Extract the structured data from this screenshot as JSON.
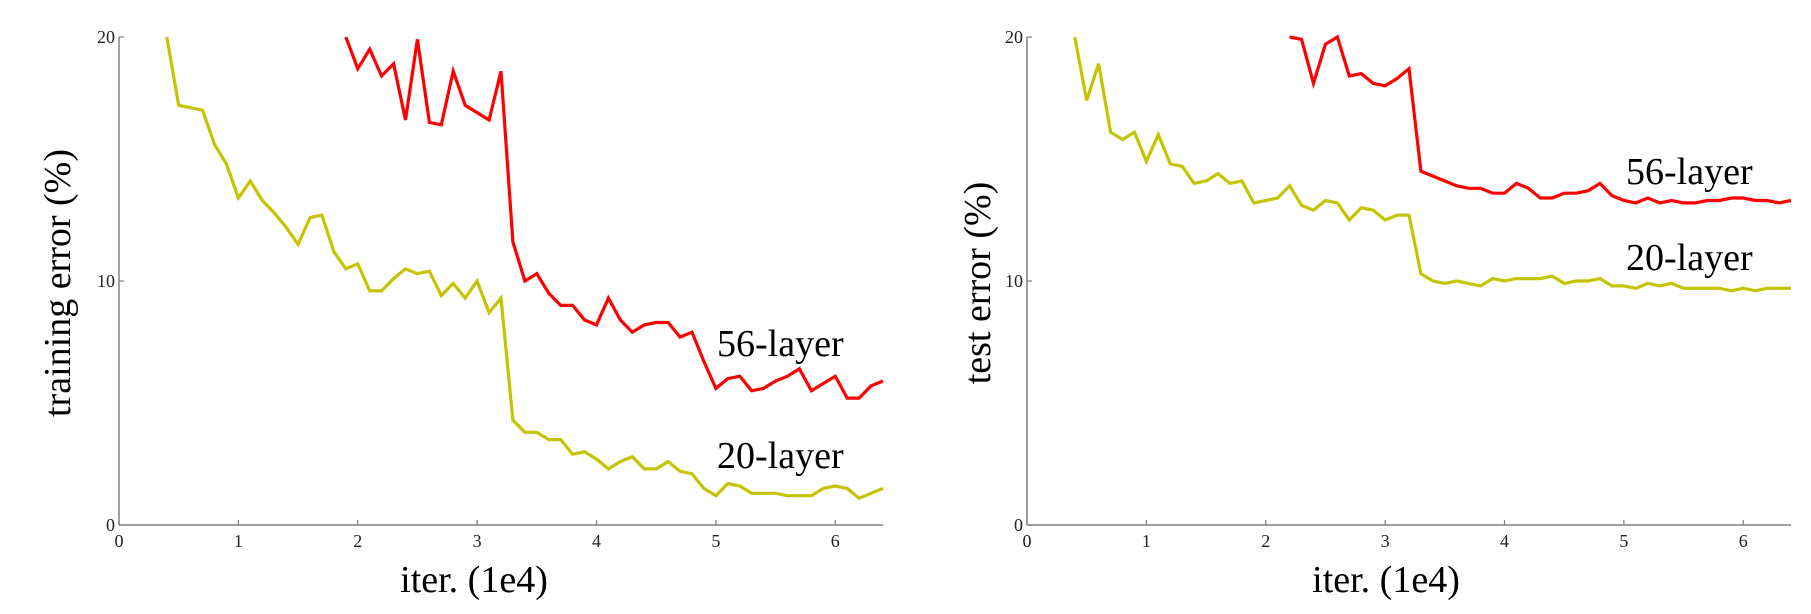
{
  "colors": {
    "56-layer": "#ff0000",
    "20-layer": "#c4c400",
    "axis": "#808080"
  },
  "chart_data": [
    {
      "type": "line",
      "xlabel": "iter. (1e4)",
      "ylabel": "training error (%)",
      "xlim": [
        0,
        6.4
      ],
      "ylim": [
        0,
        20
      ],
      "xticks": [
        0,
        1,
        2,
        3,
        4,
        5,
        6
      ],
      "yticks": [
        0,
        10,
        20
      ],
      "grid": false,
      "series": [
        {
          "name": "56-layer",
          "x": [
            1.9,
            2.0,
            2.1,
            2.2,
            2.3,
            2.4,
            2.5,
            2.6,
            2.7,
            2.8,
            2.9,
            3.0,
            3.1,
            3.2,
            3.3,
            3.4,
            3.5,
            3.6,
            3.7,
            3.8,
            3.9,
            4.0,
            4.1,
            4.2,
            4.3,
            4.4,
            4.5,
            4.6,
            4.7,
            4.8,
            4.9,
            5.0,
            5.1,
            5.2,
            5.3,
            5.4,
            5.5,
            5.6,
            5.7,
            5.8,
            5.9,
            6.0,
            6.1,
            6.2,
            6.3,
            6.4
          ],
          "y": [
            20,
            18.7,
            19.5,
            18.4,
            18.9,
            16.6,
            19.9,
            16.5,
            16.4,
            18.6,
            17.2,
            16.9,
            16.6,
            18.6,
            11.6,
            10.0,
            10.3,
            9.5,
            9.0,
            9.0,
            8.4,
            8.2,
            9.3,
            8.4,
            7.9,
            8.2,
            8.3,
            8.3,
            7.7,
            7.9,
            6.7,
            5.6,
            6.0,
            6.1,
            5.5,
            5.6,
            5.9,
            6.1,
            6.4,
            5.5,
            5.8,
            6.1,
            5.2,
            5.2,
            5.7,
            5.9
          ]
        },
        {
          "name": "20-layer",
          "x": [
            0.4,
            0.5,
            0.7,
            0.8,
            0.9,
            1.0,
            1.1,
            1.2,
            1.3,
            1.4,
            1.5,
            1.6,
            1.7,
            1.8,
            1.9,
            2.0,
            2.1,
            2.2,
            2.3,
            2.4,
            2.5,
            2.6,
            2.7,
            2.8,
            2.9,
            3.0,
            3.1,
            3.2,
            3.3,
            3.4,
            3.5,
            3.6,
            3.7,
            3.8,
            3.9,
            4.0,
            4.1,
            4.2,
            4.3,
            4.4,
            4.5,
            4.6,
            4.7,
            4.8,
            4.9,
            5.0,
            5.1,
            5.2,
            5.3,
            5.4,
            5.5,
            5.6,
            5.7,
            5.8,
            5.9,
            6.0,
            6.1,
            6.2,
            6.3,
            6.4
          ],
          "y": [
            20,
            17.2,
            17.0,
            15.6,
            14.8,
            13.4,
            14.1,
            13.3,
            12.8,
            12.2,
            11.5,
            12.6,
            12.7,
            11.2,
            10.5,
            10.7,
            9.6,
            9.6,
            10.1,
            10.5,
            10.3,
            10.4,
            9.4,
            9.9,
            9.3,
            10.0,
            8.7,
            9.3,
            4.3,
            3.8,
            3.8,
            3.5,
            3.5,
            2.9,
            3.0,
            2.7,
            2.3,
            2.6,
            2.8,
            2.3,
            2.3,
            2.6,
            2.2,
            2.1,
            1.5,
            1.2,
            1.7,
            1.6,
            1.3,
            1.3,
            1.3,
            1.2,
            1.2,
            1.2,
            1.5,
            1.6,
            1.5,
            1.1,
            1.3,
            1.5
          ]
        }
      ]
    },
    {
      "type": "line",
      "xlabel": "iter. (1e4)",
      "ylabel": "test error (%)",
      "xlim": [
        0,
        6.4
      ],
      "ylim": [
        0,
        20
      ],
      "xticks": [
        0,
        1,
        2,
        3,
        4,
        5,
        6
      ],
      "yticks": [
        0,
        10,
        20
      ],
      "grid": false,
      "series": [
        {
          "name": "56-layer",
          "x": [
            2.2,
            2.3,
            2.4,
            2.5,
            2.6,
            2.7,
            2.8,
            2.9,
            3.0,
            3.1,
            3.2,
            3.3,
            3.4,
            3.5,
            3.6,
            3.7,
            3.8,
            3.9,
            4.0,
            4.1,
            4.2,
            4.3,
            4.4,
            4.5,
            4.6,
            4.7,
            4.8,
            4.9,
            5.0,
            5.1,
            5.2,
            5.3,
            5.4,
            5.5,
            5.6,
            5.7,
            5.8,
            5.9,
            6.0,
            6.1,
            6.2,
            6.3,
            6.4
          ],
          "y": [
            20,
            19.9,
            18.1,
            19.7,
            20,
            18.4,
            18.5,
            18.1,
            18.0,
            18.3,
            18.7,
            14.5,
            14.3,
            14.1,
            13.9,
            13.8,
            13.8,
            13.6,
            13.6,
            14.0,
            13.8,
            13.4,
            13.4,
            13.6,
            13.6,
            13.7,
            14.0,
            13.5,
            13.3,
            13.2,
            13.4,
            13.2,
            13.3,
            13.2,
            13.2,
            13.3,
            13.3,
            13.4,
            13.4,
            13.3,
            13.3,
            13.2,
            13.3
          ]
        },
        {
          "name": "20-layer",
          "x": [
            0.4,
            0.5,
            0.6,
            0.7,
            0.8,
            0.9,
            1.0,
            1.1,
            1.2,
            1.3,
            1.4,
            1.5,
            1.6,
            1.7,
            1.8,
            1.9,
            2.0,
            2.1,
            2.2,
            2.3,
            2.4,
            2.5,
            2.6,
            2.7,
            2.8,
            2.9,
            3.0,
            3.1,
            3.2,
            3.3,
            3.4,
            3.5,
            3.6,
            3.7,
            3.8,
            3.9,
            4.0,
            4.1,
            4.2,
            4.3,
            4.4,
            4.5,
            4.6,
            4.7,
            4.8,
            4.9,
            5.0,
            5.1,
            5.2,
            5.3,
            5.4,
            5.5,
            5.6,
            5.7,
            5.8,
            5.9,
            6.0,
            6.1,
            6.2,
            6.3,
            6.4
          ],
          "y": [
            20,
            17.4,
            18.9,
            16.1,
            15.8,
            16.1,
            14.9,
            16.0,
            14.8,
            14.7,
            14.0,
            14.1,
            14.4,
            14.0,
            14.1,
            13.2,
            13.3,
            13.4,
            13.9,
            13.1,
            12.9,
            13.3,
            13.2,
            12.5,
            13.0,
            12.9,
            12.5,
            12.7,
            12.7,
            10.3,
            10.0,
            9.9,
            10.0,
            9.9,
            9.8,
            10.1,
            10.0,
            10.1,
            10.1,
            10.1,
            10.2,
            9.9,
            10.0,
            10.0,
            10.1,
            9.8,
            9.8,
            9.7,
            9.9,
            9.8,
            9.9,
            9.7,
            9.7,
            9.7,
            9.7,
            9.6,
            9.7,
            9.6,
            9.7,
            9.7,
            9.7
          ]
        }
      ]
    }
  ]
}
